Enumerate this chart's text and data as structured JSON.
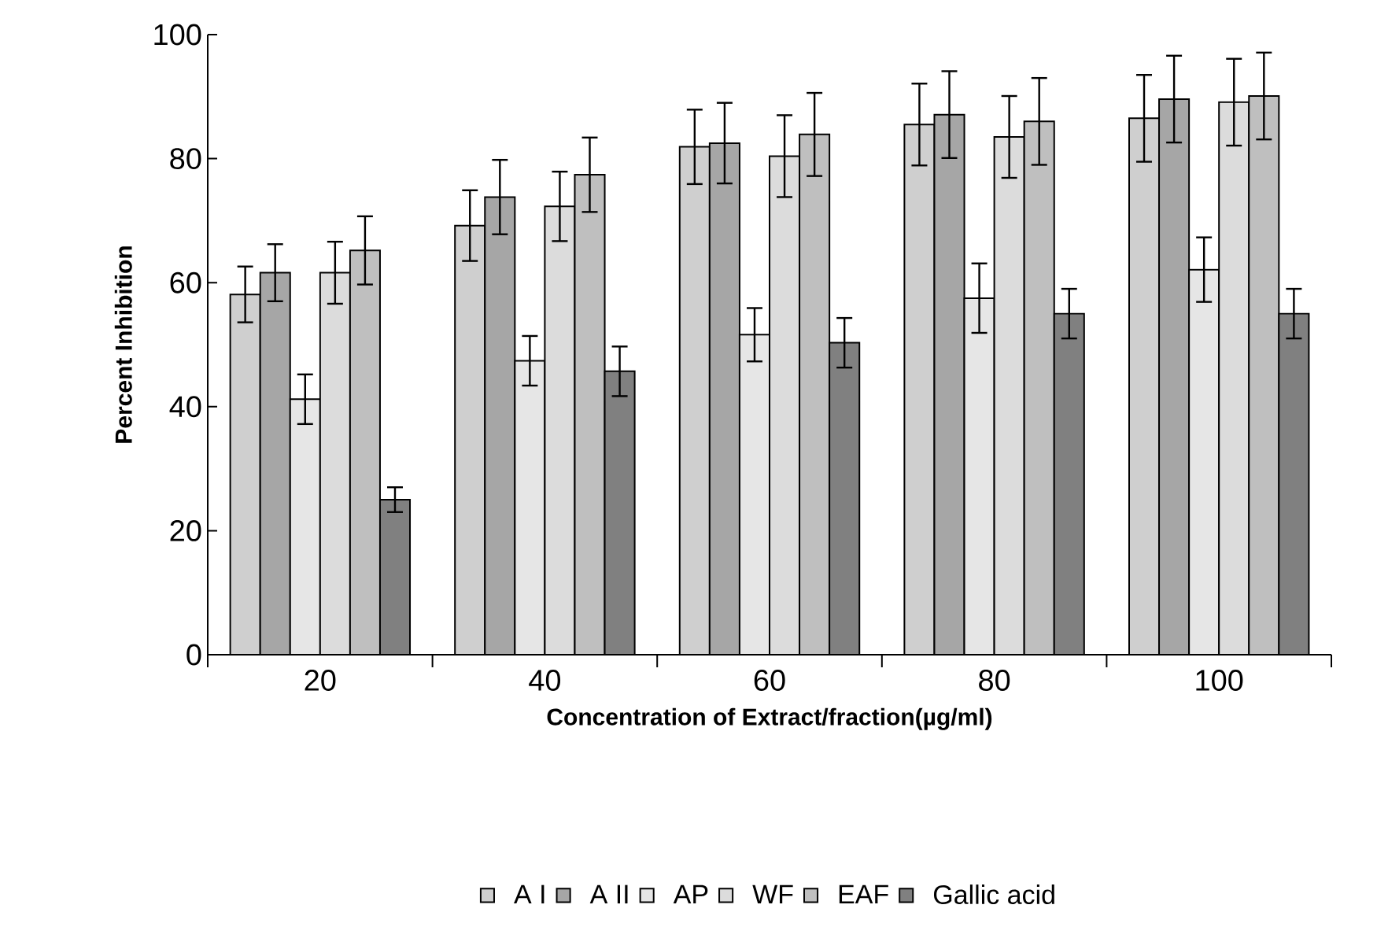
{
  "chart_data": {
    "type": "bar",
    "xlabel": "Concentration of Extract/fraction(µg/ml)",
    "ylabel": "Percent Inhibition",
    "categories": [
      "20",
      "40",
      "60",
      "80",
      "100"
    ],
    "series": [
      {
        "name": "A I",
        "color": "#cfcfcf",
        "values": [
          58.1,
          69.2,
          81.9,
          85.5,
          86.5
        ],
        "errors": [
          4.5,
          5.7,
          6,
          6.6,
          7
        ]
      },
      {
        "name": "A II",
        "color": "#a6a6a6",
        "values": [
          61.6,
          73.8,
          82.5,
          87.1,
          89.6
        ],
        "errors": [
          4.6,
          6,
          6.5,
          7,
          7
        ]
      },
      {
        "name": "AP",
        "color": "#e6e6e6",
        "values": [
          41.2,
          47.4,
          51.6,
          57.5,
          62.1
        ],
        "errors": [
          4,
          4,
          4.3,
          5.6,
          5.2
        ]
      },
      {
        "name": "WF",
        "color": "#dcdcdc",
        "values": [
          61.6,
          72.3,
          80.4,
          83.5,
          89.1
        ],
        "errors": [
          5,
          5.6,
          6.6,
          6.6,
          7
        ]
      },
      {
        "name": "EAF",
        "color": "#bfbfbf",
        "values": [
          65.2,
          77.4,
          83.9,
          86.0,
          90.1
        ],
        "errors": [
          5.5,
          6,
          6.7,
          7,
          7
        ]
      },
      {
        "name": "Gallic acid",
        "color": "#808080",
        "values": [
          25.0,
          45.7,
          50.3,
          55.0,
          55.0
        ],
        "errors": [
          2,
          4,
          4,
          4,
          4
        ]
      }
    ],
    "ylim": [
      0,
      100
    ],
    "yticks": [
      0,
      20,
      40,
      60,
      80,
      100
    ],
    "grid": false,
    "legend": "bottom"
  }
}
